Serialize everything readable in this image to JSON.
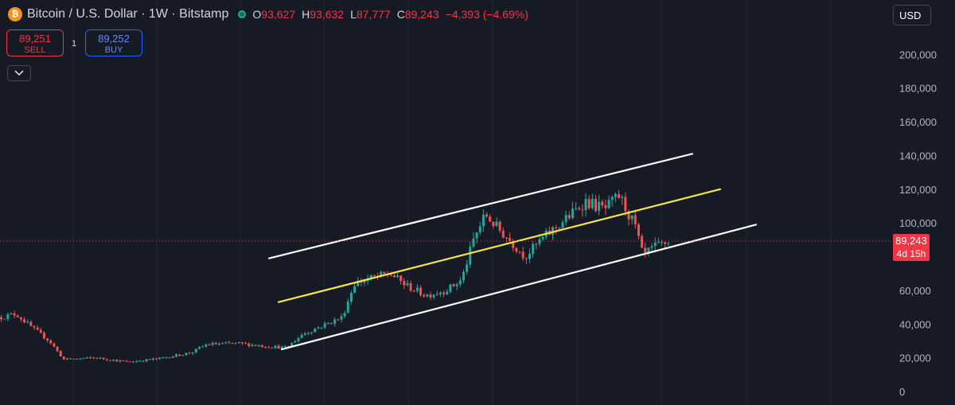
{
  "header": {
    "coin_glyph": "₿",
    "title": "Bitcoin / U.S. Dollar · 1W · Bitstamp",
    "o_label": "O",
    "o_value": "93,627",
    "h_label": "H",
    "h_value": "93,632",
    "l_label": "L",
    "l_value": "87,777",
    "c_label": "C",
    "c_value": "89,243",
    "change": "−4,393 (−4.69%)"
  },
  "trade": {
    "sell_price": "89,251",
    "sell_label": "SELL",
    "spread": "1",
    "buy_price": "89,252",
    "buy_label": "BUY"
  },
  "currency": "USD",
  "colors": {
    "up": "#26a69a",
    "down": "#ef5350",
    "background": "#161a25",
    "channel": "#ffffff",
    "midline": "#f5e642",
    "price_tag": "#f23645"
  },
  "chart_data": {
    "type": "candlestick",
    "interval": "1W",
    "y_axis": {
      "position": "right",
      "ticks": [
        0,
        20000,
        40000,
        60000,
        80000,
        100000,
        120000,
        140000,
        160000,
        180000,
        200000
      ],
      "tick_labels": [
        "0",
        "20,000",
        "40,000",
        "60,000",
        "",
        "100,000",
        "120,000",
        "140,000",
        "160,000",
        "180,000",
        "200,000"
      ]
    },
    "ylim": [
      0,
      210000
    ],
    "grid": "vertical",
    "last_price": {
      "value": 89243,
      "label": "89,243",
      "countdown": "4d 15h"
    },
    "close_anchors": [
      [
        0,
        44000
      ],
      [
        20,
        46000
      ],
      [
        40,
        38000
      ],
      [
        62,
        30000
      ],
      [
        80,
        19000
      ],
      [
        120,
        20000
      ],
      [
        160,
        17500
      ],
      [
        200,
        19500
      ],
      [
        240,
        23000
      ],
      [
        260,
        28000
      ],
      [
        300,
        28500
      ],
      [
        330,
        27000
      ],
      [
        360,
        26000
      ],
      [
        380,
        34000
      ],
      [
        410,
        40000
      ],
      [
        430,
        44000
      ],
      [
        445,
        64000
      ],
      [
        465,
        67000
      ],
      [
        490,
        70000
      ],
      [
        510,
        63000
      ],
      [
        535,
        57000
      ],
      [
        560,
        60000
      ],
      [
        580,
        66000
      ],
      [
        595,
        90000
      ],
      [
        610,
        105000
      ],
      [
        625,
        97000
      ],
      [
        640,
        90000
      ],
      [
        660,
        80000
      ],
      [
        680,
        90000
      ],
      [
        700,
        98000
      ],
      [
        720,
        106000
      ],
      [
        735,
        113000
      ],
      [
        760,
        108000
      ],
      [
        778,
        116000
      ],
      [
        798,
        98000
      ],
      [
        808,
        80000
      ],
      [
        820,
        85000
      ],
      [
        838,
        88500
      ],
      [
        842,
        89243
      ]
    ],
    "channel_lines": [
      {
        "name": "upper",
        "from": [
          338,
          79000
        ],
        "to": [
          870,
          141000
        ]
      },
      {
        "name": "mid",
        "from": [
          350,
          53000
        ],
        "to": [
          905,
          120000
        ]
      },
      {
        "name": "lower",
        "from": [
          354,
          25000
        ],
        "to": [
          950,
          99000
        ]
      }
    ]
  }
}
